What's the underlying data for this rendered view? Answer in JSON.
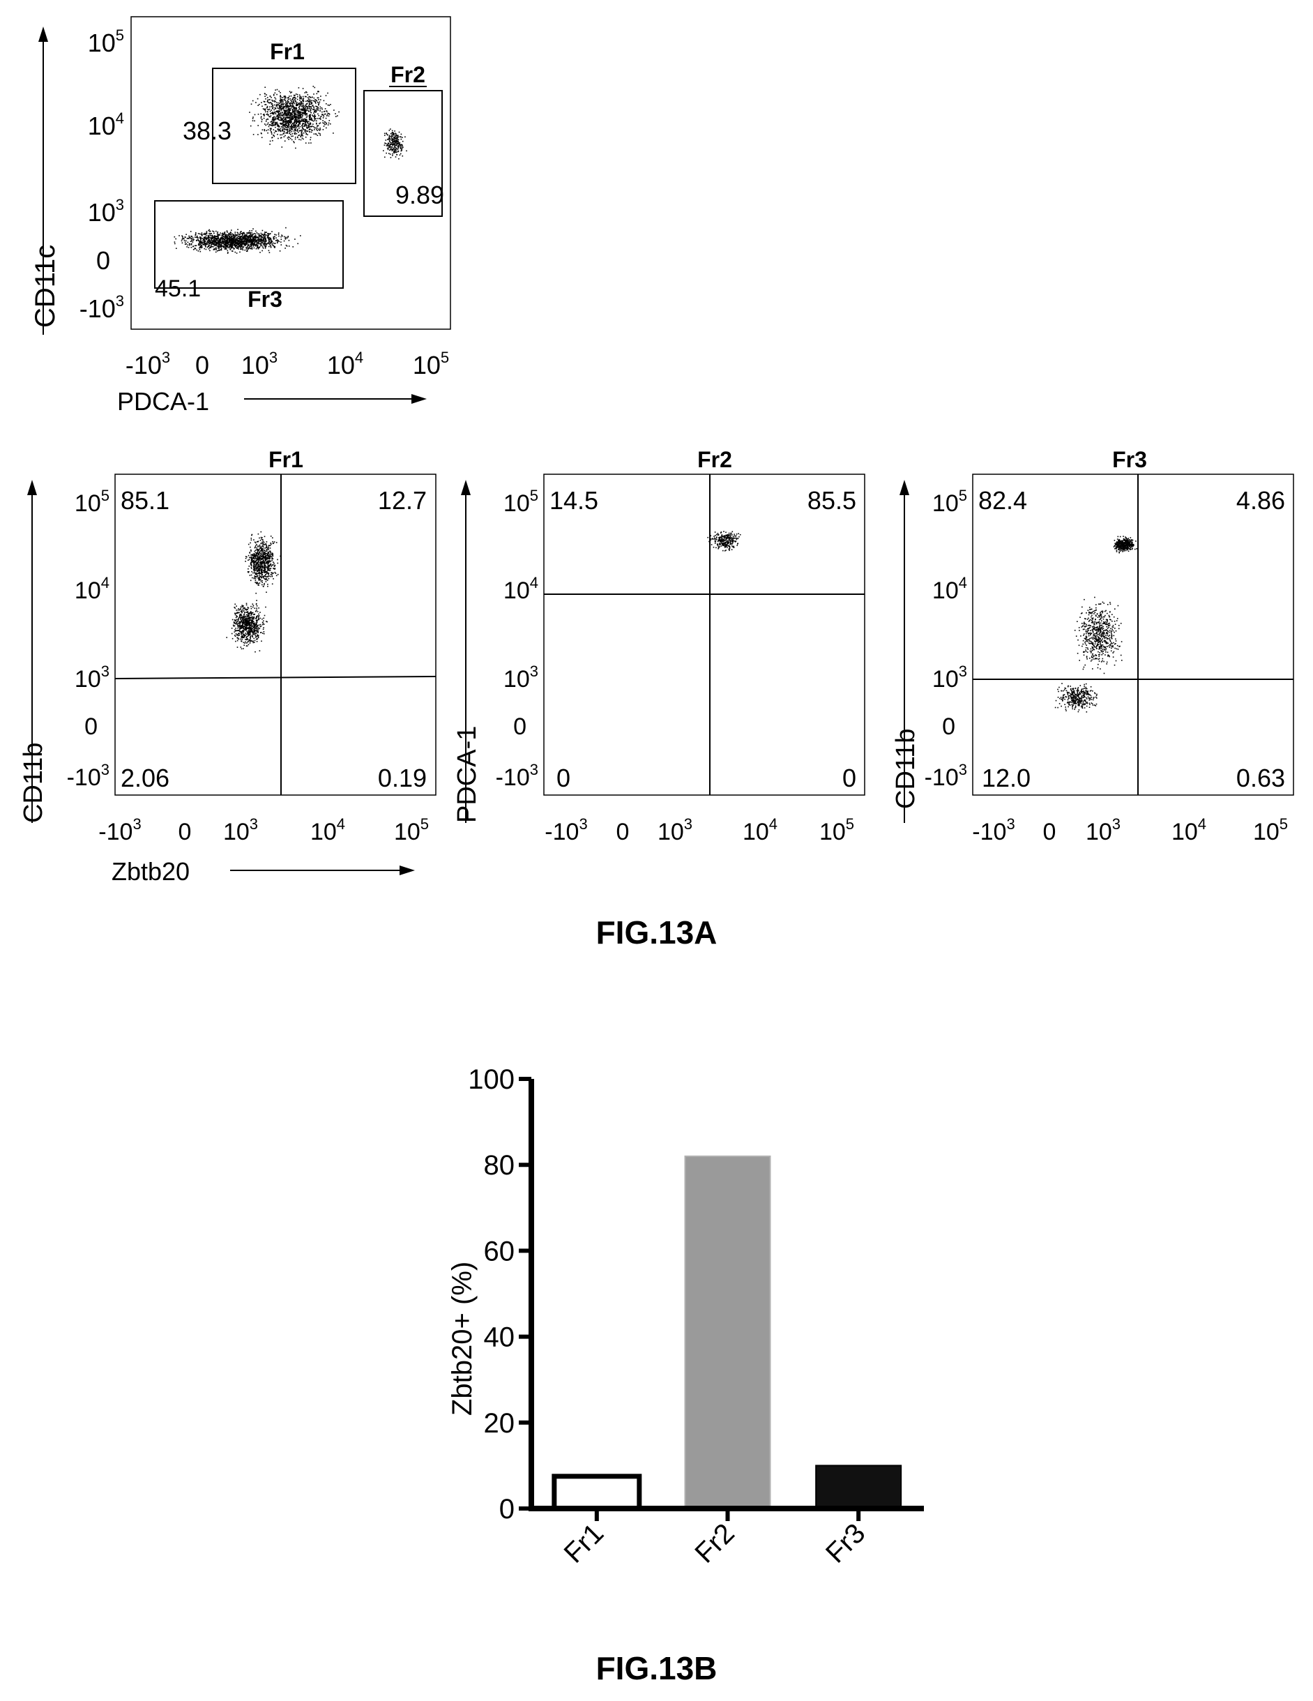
{
  "figure_a": {
    "caption": "FIG.13A",
    "gate_plot": {
      "y_axis_label": "CD11c",
      "x_axis_label": "PDCA-1",
      "y_ticks": [
        {
          "base": "10",
          "exp": "5"
        },
        {
          "base": "10",
          "exp": "4"
        },
        {
          "base": "10",
          "exp": "3"
        },
        {
          "base": "0",
          "exp": ""
        },
        {
          "base": "-10",
          "exp": "3"
        }
      ],
      "x_ticks": [
        {
          "base": "-10",
          "exp": "3"
        },
        {
          "base": "0",
          "exp": ""
        },
        {
          "base": "10",
          "exp": "3"
        },
        {
          "base": "10",
          "exp": "4"
        },
        {
          "base": "10",
          "exp": "5"
        }
      ],
      "gates": [
        {
          "name": "Fr1",
          "percent": "38.3"
        },
        {
          "name": "Fr2",
          "percent": "9.89"
        },
        {
          "name": "Fr3",
          "percent": "45.1"
        }
      ]
    },
    "quadrant_plots": [
      {
        "title": "Fr1",
        "y_axis_label": "CD11b",
        "x_axis_label": "Zbtb20",
        "quadrants": {
          "upper_left": "85.1",
          "upper_right": "12.7",
          "lower_left": "2.06",
          "lower_right": "0.19"
        }
      },
      {
        "title": "Fr2",
        "y_axis_label": "PDCA-1",
        "x_axis_label": "",
        "quadrants": {
          "upper_left": "14.5",
          "upper_right": "85.5",
          "lower_left": "0",
          "lower_right": "0"
        }
      },
      {
        "title": "Fr3",
        "y_axis_label": "CD11b",
        "x_axis_label": "",
        "quadrants": {
          "upper_left": "82.4",
          "upper_right": "4.86",
          "lower_left": "12.0",
          "lower_right": "0.63"
        }
      }
    ]
  },
  "figure_b": {
    "caption": "FIG.13B",
    "colors": {
      "Fr1": "#ffffff",
      "Fr2": "#9a9a9a",
      "Fr3": "#111111"
    }
  },
  "chart_data": {
    "type": "bar",
    "categories": [
      "Fr1",
      "Fr2",
      "Fr3"
    ],
    "values": [
      7.5,
      82,
      10
    ],
    "title": "",
    "xlabel": "",
    "ylabel": "Zbtb20+ (%)",
    "ylim": [
      0,
      100
    ],
    "yticks": [
      0,
      20,
      40,
      60,
      80,
      100
    ]
  }
}
